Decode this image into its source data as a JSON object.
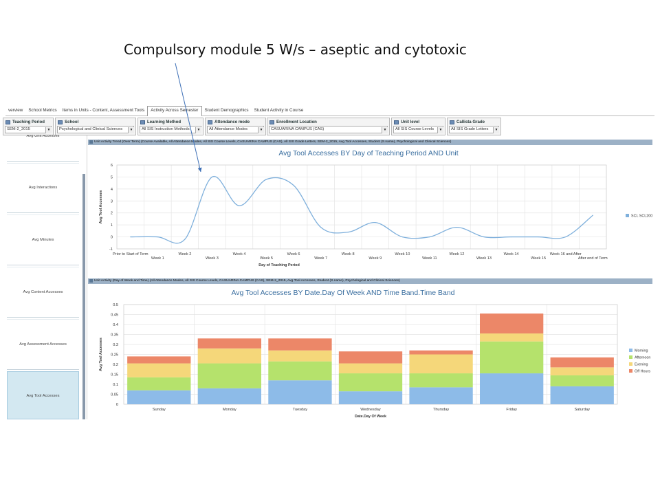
{
  "slide": {
    "title": "Compulsory module 5 W/s – aseptic and cytotoxic"
  },
  "tabs": [
    {
      "label": "verview"
    },
    {
      "label": "School Metrics"
    },
    {
      "label": "Items in Units - Content, Assessment Tools"
    },
    {
      "label": "Activity Across Semester",
      "active": true
    },
    {
      "label": "Student Demographics"
    },
    {
      "label": "Student Activity in Course"
    }
  ],
  "filters": [
    {
      "label": "Teaching Period",
      "value": "SEM-2_2015"
    },
    {
      "label": "School",
      "value": "Psychological and Clinical Sciences"
    },
    {
      "label": "Learning Method",
      "value": "All SIS Instruction Methods"
    },
    {
      "label": "Attendance mode",
      "value": "All Attendance Modes"
    },
    {
      "label": "Enrollment Location",
      "value": "CASUARINA CAMPUS (CAS)"
    },
    {
      "label": "Unit level",
      "value": "All SIS Course Levels"
    },
    {
      "label": "Callista Grade",
      "value": "All SIS Grade Letters"
    }
  ],
  "sidebar": {
    "items": [
      {
        "label": "Avg Unit Accesses"
      },
      {
        "label": "Avg Interactions"
      },
      {
        "label": "Avg Minutes"
      },
      {
        "label": "Avg Content Accesses"
      },
      {
        "label": "Avg Assessment Accesses"
      },
      {
        "label": "Avg Tool Accesses",
        "active": true
      }
    ]
  },
  "panel1": {
    "header": "Unit Activity Trend (Over Term)  (Course Available, All Attendance Modes, All SIS Course Levels, CASUARINA CAMPUS (CAS), All SIS Grade Letters, SEM-2_2015, Avg Tool Accesses, Student (S.name), Psychological and Clinical Sciences)"
  },
  "panel2": {
    "header": "Unit Activity (Day of Week and Time)  (All Attendance Modes, All SIS Course Levels, CASUARINA CAMPUS (CAS), SEM-2_2015, Avg Tool Accesses, Student (S.name), Psychological and Clinical Sciences)"
  },
  "colors": {
    "line": "#7fb0dc",
    "morning": "#8dbbe8",
    "afternoon": "#b5e26c",
    "evening": "#f5d77a",
    "offhours": "#ec8768",
    "arrow": "#3d6fb6"
  },
  "chart_data": [
    {
      "type": "line",
      "title": "Avg Tool Accesses BY Day of Teaching Period AND Unit",
      "xlabel": "Day of Teaching Period",
      "ylabel": "Avg Tool Accesses",
      "ylim": [
        -1,
        6
      ],
      "yticks": [
        -1,
        0,
        1,
        2,
        3,
        4,
        5,
        6
      ],
      "grid": true,
      "legend_position": "right",
      "categories": [
        "Prior to Start of Term",
        "Week 1",
        "Week 2",
        "Week 3",
        "Week 4",
        "Week 5",
        "Week 6",
        "Week 7",
        "Week 8",
        "Week 9",
        "Week 10",
        "Week 11",
        "Week 12",
        "Week 13",
        "Week 14",
        "Week 15",
        "Week 16 and After",
        "After end of Term"
      ],
      "series": [
        {
          "name": "SCL SCL200",
          "values": [
            0,
            0,
            -0.2,
            5,
            2.6,
            4.8,
            4.3,
            0.8,
            0.4,
            1.2,
            0,
            0,
            0.8,
            0,
            0,
            0,
            0,
            1.8
          ]
        }
      ]
    },
    {
      "type": "bar",
      "stacked": true,
      "title": "Avg Tool Accesses BY Date.Day Of Week AND Time Band.Time Band",
      "xlabel": "Date.Day Of Week",
      "ylabel": "Avg Tool Accesses",
      "ylim": [
        0,
        0.5
      ],
      "yticks": [
        0,
        0.05,
        0.1,
        0.15,
        0.2,
        0.25,
        0.3,
        0.35,
        0.4,
        0.45,
        0.5
      ],
      "grid": true,
      "legend_position": "right",
      "categories": [
        "Sunday",
        "Monday",
        "Tuesday",
        "Wednesday",
        "Thursday",
        "Friday",
        "Saturday"
      ],
      "series": [
        {
          "name": "Morning",
          "values": [
            0.07,
            0.08,
            0.12,
            0.065,
            0.085,
            0.155,
            0.09
          ]
        },
        {
          "name": "Afternoon",
          "values": [
            0.065,
            0.125,
            0.095,
            0.09,
            0.07,
            0.16,
            0.055
          ]
        },
        {
          "name": "Evening",
          "values": [
            0.07,
            0.075,
            0.055,
            0.05,
            0.095,
            0.04,
            0.04
          ]
        },
        {
          "name": "Off Hours",
          "values": [
            0.035,
            0.05,
            0.06,
            0.06,
            0.02,
            0.1,
            0.05
          ]
        }
      ]
    }
  ]
}
